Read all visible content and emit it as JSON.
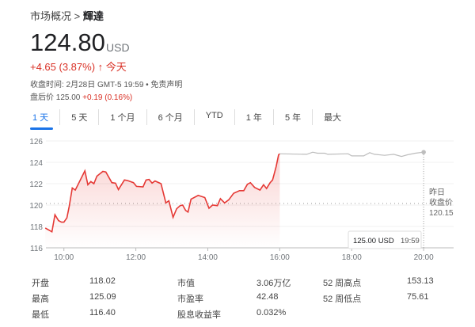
{
  "breadcrumb": {
    "parent": "市场概况",
    "sep": ">",
    "current": "輝達"
  },
  "price": "124.80",
  "currency": "USD",
  "change": {
    "text": "+4.65 (3.87%)",
    "arrow": "↑",
    "period": "今天",
    "color": "#d93025"
  },
  "close_info": "收盘时间: 2月28日 GMT-5 19:59 • 免责声明",
  "after_hours": {
    "label": "盘后价",
    "price": "125.00",
    "change": "+0.19 (0.16%)"
  },
  "tabs": [
    {
      "label": "1 天",
      "active": true
    },
    {
      "label": "5 天"
    },
    {
      "label": "1 个月"
    },
    {
      "label": "6 个月"
    },
    {
      "label": "YTD"
    },
    {
      "label": "1 年"
    },
    {
      "label": "5 年"
    },
    {
      "label": "最大"
    }
  ],
  "chart_data": {
    "type": "line",
    "ylim": [
      116,
      126
    ],
    "yticks": [
      "116",
      "118",
      "120",
      "122",
      "124",
      "126"
    ],
    "xlim": [
      "09:30",
      "20:50"
    ],
    "xticks": [
      "10:00",
      "12:00",
      "14:00",
      "16:00",
      "18:00",
      "20:00"
    ],
    "previous_close": {
      "label1": "昨日",
      "label2": "收盘价",
      "value": 120.15,
      "value_text": "120.15"
    },
    "tooltip": {
      "price": "125.00 USD",
      "time": "19:59"
    },
    "series": [
      {
        "session": "regular",
        "color": "#e53935",
        "points": [
          [
            "09:29",
            117.85
          ],
          [
            "09:40",
            117.5
          ],
          [
            "09:45",
            119.1
          ],
          [
            "09:51",
            118.55
          ],
          [
            "09:56",
            118.4
          ],
          [
            "10:00",
            118.4
          ],
          [
            "10:05",
            118.8
          ],
          [
            "10:09",
            119.9
          ],
          [
            "10:14",
            121.6
          ],
          [
            "10:19",
            121.4
          ],
          [
            "10:35",
            123.2
          ],
          [
            "10:40",
            121.9
          ],
          [
            "10:45",
            122.2
          ],
          [
            "10:50",
            122.0
          ],
          [
            "10:55",
            122.7
          ],
          [
            "11:05",
            123.15
          ],
          [
            "11:10",
            123.1
          ],
          [
            "11:20",
            122.1
          ],
          [
            "11:26",
            122.05
          ],
          [
            "11:31",
            121.45
          ],
          [
            "11:41",
            122.35
          ],
          [
            "11:46",
            122.3
          ],
          [
            "11:56",
            122.1
          ],
          [
            "12:01",
            121.75
          ],
          [
            "12:12",
            121.7
          ],
          [
            "12:17",
            122.35
          ],
          [
            "12:22",
            122.4
          ],
          [
            "12:27",
            122.05
          ],
          [
            "12:32",
            122.25
          ],
          [
            "12:42",
            122.0
          ],
          [
            "12:50",
            120.2
          ],
          [
            "12:55",
            120.4
          ],
          [
            "13:02",
            118.85
          ],
          [
            "13:08",
            119.65
          ],
          [
            "13:14",
            119.95
          ],
          [
            "13:18",
            120.0
          ],
          [
            "13:23",
            119.5
          ],
          [
            "13:27",
            119.35
          ],
          [
            "13:32",
            120.55
          ],
          [
            "13:44",
            120.9
          ],
          [
            "13:55",
            120.7
          ],
          [
            "14:02",
            119.7
          ],
          [
            "14:08",
            120.0
          ],
          [
            "14:16",
            119.95
          ],
          [
            "14:21",
            120.6
          ],
          [
            "14:28",
            120.2
          ],
          [
            "14:35",
            120.5
          ],
          [
            "14:43",
            121.1
          ],
          [
            "14:53",
            121.35
          ],
          [
            "15:00",
            121.35
          ],
          [
            "15:06",
            121.95
          ],
          [
            "15:11",
            122.1
          ],
          [
            "15:18",
            121.65
          ],
          [
            "15:27",
            121.4
          ],
          [
            "15:33",
            121.9
          ],
          [
            "15:38",
            121.55
          ],
          [
            "15:44",
            122.1
          ],
          [
            "15:48",
            122.35
          ],
          [
            "15:54",
            123.6
          ],
          [
            "15:58",
            124.7
          ],
          [
            "16:00",
            124.8
          ]
        ]
      },
      {
        "session": "after-hours",
        "color": "#bdbdbd",
        "points": [
          [
            "16:00",
            124.8
          ],
          [
            "16:45",
            124.75
          ],
          [
            "16:55",
            124.95
          ],
          [
            "17:03",
            124.85
          ],
          [
            "17:15",
            124.85
          ],
          [
            "17:20",
            124.75
          ],
          [
            "17:54",
            124.8
          ],
          [
            "18:00",
            124.6
          ],
          [
            "18:20",
            124.6
          ],
          [
            "18:30",
            124.9
          ],
          [
            "18:38",
            124.75
          ],
          [
            "18:55",
            124.65
          ],
          [
            "19:10",
            124.75
          ],
          [
            "19:23",
            124.55
          ],
          [
            "19:33",
            124.7
          ],
          [
            "19:46",
            124.85
          ],
          [
            "20:00",
            124.95
          ]
        ]
      }
    ]
  },
  "stats": [
    {
      "label": "开盘",
      "value": "118.02"
    },
    {
      "label": "最高",
      "value": "125.09"
    },
    {
      "label": "最低",
      "value": "116.40"
    },
    {
      "label": "市值",
      "value": "3.06万亿"
    },
    {
      "label": "市盈率",
      "value": "42.48"
    },
    {
      "label": "股息收益率",
      "value": "0.032%"
    },
    {
      "label": "52 周高点",
      "value": "153.13"
    },
    {
      "label": "52 周低点",
      "value": "75.61"
    }
  ]
}
